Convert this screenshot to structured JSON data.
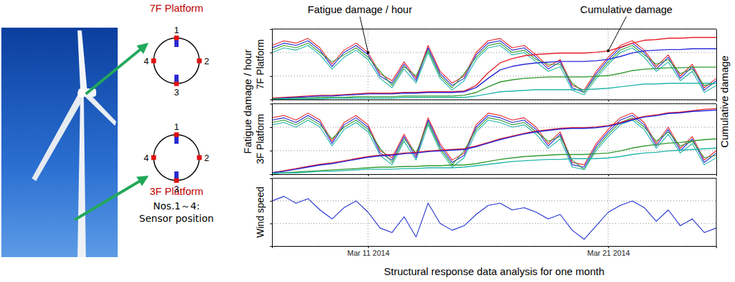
{
  "figure": {
    "ylabel": "Fatigue damage / hour",
    "y2label": "Cumulative damage"
  },
  "diagram": {
    "platforms": [
      {
        "label": "7F Platform",
        "sensors": [
          1,
          2,
          3,
          4
        ]
      },
      {
        "label": "3F Platform",
        "sensors": [
          1,
          2,
          3,
          4
        ]
      }
    ],
    "note": [
      "Nos.1～4:",
      "Sensor position"
    ]
  },
  "chart_data": [
    {
      "type": "line",
      "ylabel": "7F Platform",
      "annotations": [
        {
          "text": "Fatigue damage / hour"
        },
        {
          "text": "Cumulative damage"
        }
      ],
      "x": [
        7,
        7.5,
        8,
        8.5,
        9,
        9.5,
        10,
        10.5,
        11,
        11.5,
        12,
        12.5,
        13,
        13.5,
        14,
        14.5,
        15,
        15.5,
        16,
        16.5,
        17,
        17.5,
        18,
        18.5,
        19,
        19.5,
        20,
        20.5,
        21,
        21.5,
        22,
        22.5,
        23,
        23.5,
        24,
        24.5,
        25,
        25.5
      ],
      "xlim": [
        7,
        25.5
      ],
      "xticks": [
        11,
        21
      ],
      "ylim": [
        0,
        3
      ],
      "yticks": [
        0,
        1,
        2,
        3
      ],
      "y2lim": [
        0,
        1
      ],
      "grid": true,
      "tick_labels": false,
      "series": [
        {
          "color": "#e8202a",
          "values": [
            2.3,
            2.5,
            2.4,
            2.6,
            2.2,
            1.5,
            2.1,
            2.4,
            2.0,
            1.1,
            0.8,
            1.6,
            0.9,
            2.3,
            1.2,
            0.7,
            1.0,
            2.0,
            2.5,
            2.6,
            2.2,
            2.3,
            1.9,
            1.4,
            1.7,
            0.6,
            0.4,
            1.2,
            1.8,
            2.3,
            2.5,
            2.1,
            1.4,
            1.9,
            1.0,
            1.5,
            0.5,
            0.9
          ]
        },
        {
          "color": "#2424d8",
          "values": [
            2.2,
            2.4,
            2.3,
            2.5,
            2.1,
            1.4,
            2.0,
            2.3,
            1.9,
            1.0,
            0.7,
            1.5,
            0.8,
            2.2,
            1.1,
            0.6,
            0.9,
            1.9,
            2.4,
            2.5,
            2.1,
            2.2,
            1.8,
            1.3,
            1.6,
            0.5,
            0.3,
            1.1,
            1.7,
            2.2,
            2.4,
            2.0,
            1.3,
            1.8,
            0.9,
            1.4,
            0.4,
            0.8
          ]
        },
        {
          "color": "#2e9a2e",
          "values": [
            2.1,
            2.3,
            2.2,
            2.4,
            2.0,
            1.6,
            1.9,
            2.2,
            1.8,
            1.2,
            0.6,
            1.4,
            1.0,
            2.1,
            1.0,
            0.5,
            1.1,
            1.8,
            2.3,
            2.4,
            2.0,
            2.1,
            1.7,
            1.5,
            1.5,
            0.7,
            0.3,
            1.0,
            1.6,
            2.1,
            2.3,
            1.9,
            1.5,
            1.7,
            1.1,
            1.3,
            0.6,
            0.7
          ]
        },
        {
          "color": "#1fb5a8",
          "values": [
            2.0,
            2.2,
            2.1,
            2.3,
            1.9,
            1.3,
            1.8,
            2.1,
            1.7,
            0.9,
            0.5,
            1.3,
            0.7,
            2.0,
            0.9,
            0.4,
            0.8,
            1.7,
            2.2,
            2.3,
            1.9,
            2.0,
            1.6,
            1.2,
            1.4,
            0.4,
            0.2,
            0.9,
            1.5,
            2.0,
            2.2,
            1.8,
            1.2,
            1.6,
            0.8,
            1.2,
            0.3,
            0.6
          ]
        },
        {
          "color": "#e8202a",
          "axis": "y2",
          "values": [
            0.02,
            0.03,
            0.04,
            0.05,
            0.06,
            0.06,
            0.07,
            0.08,
            0.09,
            0.09,
            0.09,
            0.1,
            0.1,
            0.11,
            0.11,
            0.11,
            0.12,
            0.2,
            0.38,
            0.52,
            0.58,
            0.62,
            0.64,
            0.65,
            0.66,
            0.66,
            0.66,
            0.67,
            0.69,
            0.74,
            0.8,
            0.84,
            0.85,
            0.87,
            0.87,
            0.88,
            0.88,
            0.88
          ]
        },
        {
          "color": "#2424d8",
          "axis": "y2",
          "values": [
            0.01,
            0.02,
            0.03,
            0.04,
            0.05,
            0.05,
            0.06,
            0.07,
            0.08,
            0.08,
            0.08,
            0.09,
            0.09,
            0.1,
            0.1,
            0.1,
            0.11,
            0.17,
            0.3,
            0.42,
            0.47,
            0.5,
            0.52,
            0.53,
            0.54,
            0.54,
            0.54,
            0.55,
            0.57,
            0.61,
            0.66,
            0.69,
            0.7,
            0.71,
            0.71,
            0.72,
            0.72,
            0.72
          ]
        },
        {
          "color": "#2e9a2e",
          "axis": "y2",
          "values": [
            0.01,
            0.01,
            0.02,
            0.02,
            0.03,
            0.03,
            0.03,
            0.04,
            0.04,
            0.04,
            0.04,
            0.05,
            0.05,
            0.05,
            0.05,
            0.05,
            0.06,
            0.1,
            0.18,
            0.25,
            0.28,
            0.3,
            0.31,
            0.32,
            0.32,
            0.32,
            0.32,
            0.33,
            0.34,
            0.37,
            0.41,
            0.43,
            0.44,
            0.45,
            0.45,
            0.46,
            0.46,
            0.46
          ]
        },
        {
          "color": "#1fb5a8",
          "axis": "y2",
          "values": [
            0,
            0.01,
            0.01,
            0.01,
            0.01,
            0.02,
            0.02,
            0.02,
            0.02,
            0.02,
            0.02,
            0.03,
            0.03,
            0.03,
            0.03,
            0.03,
            0.03,
            0.05,
            0.08,
            0.11,
            0.12,
            0.13,
            0.14,
            0.14,
            0.14,
            0.14,
            0.14,
            0.15,
            0.16,
            0.18,
            0.2,
            0.22,
            0.22,
            0.23,
            0.23,
            0.23,
            0.23,
            0.23
          ]
        }
      ]
    },
    {
      "type": "line",
      "ylabel": "3F Platform",
      "x": [
        7,
        7.5,
        8,
        8.5,
        9,
        9.5,
        10,
        10.5,
        11,
        11.5,
        12,
        12.5,
        13,
        13.5,
        14,
        14.5,
        15,
        15.5,
        16,
        16.5,
        17,
        17.5,
        18,
        18.5,
        19,
        19.5,
        20,
        20.5,
        21,
        21.5,
        22,
        22.5,
        23,
        23.5,
        24,
        24.5,
        25,
        25.5
      ],
      "xlim": [
        7,
        25.5
      ],
      "xticks": [
        11,
        21
      ],
      "ylim": [
        0,
        3
      ],
      "yticks": [
        0,
        1,
        2,
        3
      ],
      "y2lim": [
        0,
        1
      ],
      "grid": true,
      "tick_labels": false,
      "series": [
        {
          "color": "#e8202a",
          "values": [
            2.4,
            2.5,
            2.3,
            2.6,
            2.3,
            1.4,
            2.2,
            2.5,
            2.1,
            1.0,
            0.7,
            1.7,
            0.8,
            2.4,
            1.3,
            0.6,
            0.9,
            2.1,
            2.6,
            2.5,
            2.3,
            2.4,
            2.0,
            1.3,
            1.8,
            0.5,
            0.4,
            1.3,
            1.9,
            2.4,
            2.6,
            2.2,
            1.3,
            2.0,
            1.1,
            1.6,
            0.6,
            1.0
          ]
        },
        {
          "color": "#2424d8",
          "values": [
            2.3,
            2.4,
            2.2,
            2.5,
            2.2,
            1.3,
            2.1,
            2.4,
            2.0,
            0.9,
            0.6,
            1.6,
            0.7,
            2.3,
            1.2,
            0.5,
            0.8,
            2.0,
            2.5,
            2.4,
            2.2,
            2.3,
            1.9,
            1.2,
            1.7,
            0.4,
            0.3,
            1.2,
            1.8,
            2.3,
            2.5,
            2.1,
            1.2,
            1.9,
            1.0,
            1.5,
            0.5,
            0.9
          ]
        },
        {
          "color": "#2e9a2e",
          "values": [
            2.2,
            2.3,
            2.1,
            2.4,
            2.1,
            1.5,
            2.0,
            2.3,
            1.9,
            1.1,
            0.5,
            1.5,
            0.9,
            2.2,
            1.1,
            0.4,
            1.0,
            1.9,
            2.4,
            2.3,
            2.1,
            2.2,
            1.8,
            1.4,
            1.6,
            0.6,
            0.2,
            1.1,
            1.7,
            2.2,
            2.4,
            2.0,
            1.4,
            1.8,
            1.2,
            1.4,
            0.7,
            0.8
          ]
        },
        {
          "color": "#1fb5a8",
          "values": [
            2.1,
            2.2,
            2.0,
            2.3,
            2.0,
            1.2,
            1.9,
            2.2,
            1.8,
            0.8,
            0.4,
            1.4,
            0.6,
            2.1,
            1.0,
            0.3,
            0.7,
            1.8,
            2.3,
            2.2,
            2.0,
            2.1,
            1.7,
            1.1,
            1.5,
            0.3,
            0.2,
            1.0,
            1.6,
            2.1,
            2.3,
            1.9,
            1.1,
            1.7,
            0.9,
            1.3,
            0.4,
            0.7
          ]
        },
        {
          "color": "#e8202a",
          "axis": "y2",
          "values": [
            0.02,
            0.05,
            0.08,
            0.11,
            0.14,
            0.16,
            0.19,
            0.22,
            0.25,
            0.27,
            0.28,
            0.3,
            0.31,
            0.33,
            0.34,
            0.35,
            0.36,
            0.4,
            0.45,
            0.5,
            0.54,
            0.58,
            0.61,
            0.63,
            0.65,
            0.66,
            0.66,
            0.67,
            0.69,
            0.73,
            0.78,
            0.82,
            0.84,
            0.87,
            0.88,
            0.9,
            0.92,
            0.93
          ]
        },
        {
          "color": "#2424d8",
          "axis": "y2",
          "values": [
            0.02,
            0.04,
            0.07,
            0.1,
            0.13,
            0.15,
            0.18,
            0.21,
            0.24,
            0.26,
            0.27,
            0.29,
            0.3,
            0.32,
            0.33,
            0.34,
            0.35,
            0.39,
            0.44,
            0.49,
            0.53,
            0.57,
            0.6,
            0.62,
            0.64,
            0.65,
            0.65,
            0.66,
            0.68,
            0.72,
            0.77,
            0.81,
            0.83,
            0.86,
            0.87,
            0.89,
            0.9,
            0.91
          ]
        },
        {
          "color": "#2e9a2e",
          "axis": "y2",
          "values": [
            0.01,
            0.02,
            0.03,
            0.04,
            0.05,
            0.06,
            0.07,
            0.08,
            0.09,
            0.1,
            0.1,
            0.11,
            0.11,
            0.12,
            0.12,
            0.13,
            0.13,
            0.15,
            0.18,
            0.21,
            0.23,
            0.25,
            0.26,
            0.27,
            0.28,
            0.28,
            0.28,
            0.29,
            0.3,
            0.33,
            0.37,
            0.4,
            0.42,
            0.44,
            0.45,
            0.47,
            0.49,
            0.5
          ]
        },
        {
          "color": "#1fb5a8",
          "axis": "y2",
          "values": [
            0.01,
            0.02,
            0.02,
            0.03,
            0.04,
            0.04,
            0.05,
            0.06,
            0.07,
            0.07,
            0.07,
            0.08,
            0.08,
            0.09,
            0.09,
            0.09,
            0.1,
            0.12,
            0.14,
            0.16,
            0.18,
            0.19,
            0.2,
            0.21,
            0.21,
            0.22,
            0.22,
            0.22,
            0.23,
            0.25,
            0.28,
            0.3,
            0.31,
            0.33,
            0.34,
            0.35,
            0.36,
            0.37
          ]
        }
      ]
    },
    {
      "type": "line",
      "ylabel": "Wind speed",
      "xlabel": "Structural response data analysis for one month",
      "x": [
        7,
        7.5,
        8,
        8.5,
        9,
        9.5,
        10,
        10.5,
        11,
        11.5,
        12,
        12.5,
        13,
        13.5,
        14,
        14.5,
        15,
        15.5,
        16,
        16.5,
        17,
        17.5,
        18,
        18.5,
        19,
        19.5,
        20,
        20.5,
        21,
        21.5,
        22,
        22.5,
        23,
        23.5,
        24,
        24.5,
        25,
        25.5
      ],
      "xlim": [
        7,
        25.5
      ],
      "xticks": [
        {
          "value": 11,
          "label": "Mar 11 2014"
        },
        {
          "value": 21,
          "label": "Mar 21 2014"
        }
      ],
      "ylim": [
        0,
        3
      ],
      "yticks": [
        0,
        1,
        2,
        3
      ],
      "grid": true,
      "tick_labels": "x",
      "series": [
        {
          "color": "#1f2fd0",
          "values": [
            2.0,
            2.2,
            1.9,
            2.1,
            1.6,
            1.2,
            1.7,
            2.0,
            1.5,
            0.8,
            0.6,
            1.3,
            0.4,
            1.9,
            1.0,
            0.7,
            0.9,
            1.4,
            1.8,
            1.9,
            1.6,
            1.7,
            1.5,
            1.2,
            1.4,
            0.7,
            0.3,
            0.9,
            1.5,
            1.8,
            2.0,
            1.7,
            1.1,
            1.6,
            0.9,
            1.2,
            0.6,
            0.8
          ]
        }
      ]
    }
  ]
}
